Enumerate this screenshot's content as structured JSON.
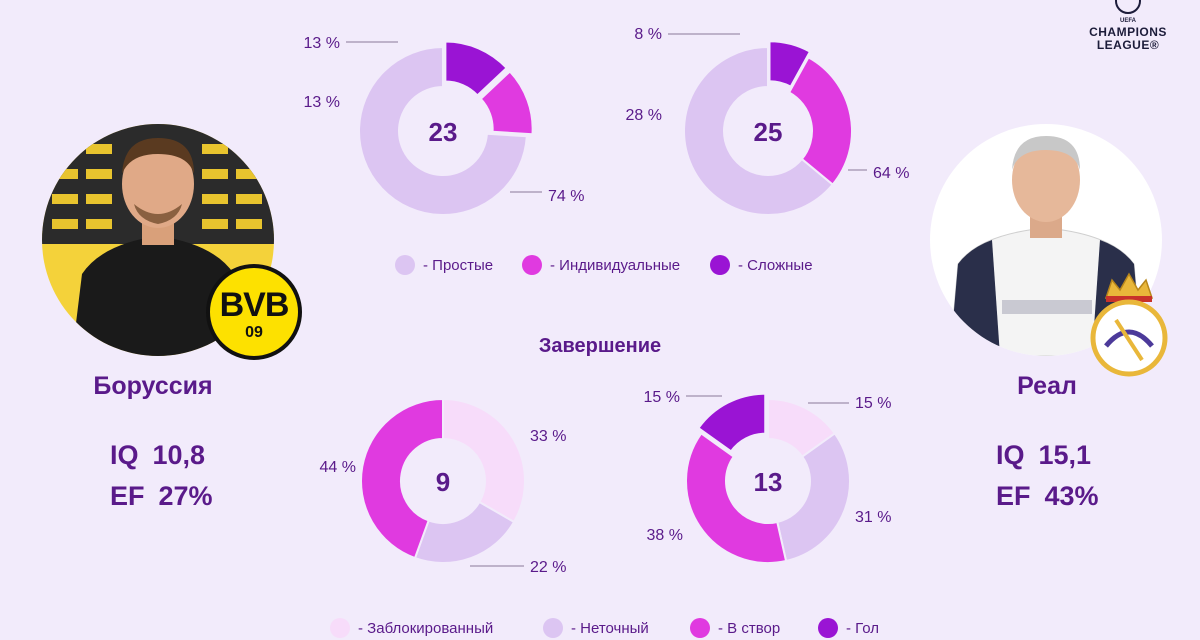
{
  "header": {
    "ucl_logo": {
      "small": "UEFA",
      "line1": "CHAMPIONS",
      "line2": "LEAGUE®"
    }
  },
  "sections": {
    "passes_legend": [
      "- Простые",
      "- Индивидуальные",
      "- Сложные"
    ],
    "finish_title": "Завершение",
    "finish_legend": [
      "- Заблокированный",
      "- Неточный",
      "- В створ",
      "- Гол"
    ]
  },
  "teams": {
    "left": {
      "name": "Боруссия",
      "iq_label": "IQ",
      "iq_value": "10,8",
      "ef_label": "EF",
      "ef_value": "27%",
      "badge_text_top": "BVB",
      "badge_text_bottom": "09"
    },
    "right": {
      "name": "Реал",
      "iq_label": "IQ",
      "iq_value": "15,1",
      "ef_label": "EF",
      "ef_value": "43%"
    }
  },
  "colors": {
    "background": "#f2ebfb",
    "text": "#5a1a8a",
    "passes": [
      "#dcc5f2",
      "#e03ae0",
      "#9a14d4"
    ],
    "finish": [
      "#f7dcfa",
      "#dcc5f2",
      "#e03ae0",
      "#9a14d4"
    ]
  },
  "chart_data": [
    {
      "type": "pie",
      "id": "passes-borussia",
      "center_value": "23",
      "categories": [
        "- Простые",
        "- Индивидуальные",
        "- Сложные"
      ],
      "values": [
        74,
        13,
        13
      ],
      "labels": [
        "74 %",
        "13 %",
        "13 %"
      ]
    },
    {
      "type": "pie",
      "id": "passes-real",
      "center_value": "25",
      "categories": [
        "- Простые",
        "- Индивидуальные",
        "- Сложные"
      ],
      "values": [
        64,
        28,
        8
      ],
      "labels": [
        "64 %",
        "28 %",
        "8 %"
      ]
    },
    {
      "type": "pie",
      "id": "finish-borussia",
      "center_value": "9",
      "categories": [
        "- Заблокированный",
        "- Неточный",
        "- В створ",
        "- Гол"
      ],
      "values": [
        33,
        22,
        44,
        0
      ],
      "labels": [
        "33 %",
        "22 %",
        "44 %",
        ""
      ]
    },
    {
      "type": "pie",
      "id": "finish-real",
      "center_value": "13",
      "categories": [
        "- Заблокированный",
        "- Неточный",
        "- В створ",
        "- Гол"
      ],
      "values": [
        15,
        31,
        38,
        15
      ],
      "labels": [
        "15 %",
        "31 %",
        "38 %",
        "15 %"
      ]
    }
  ]
}
